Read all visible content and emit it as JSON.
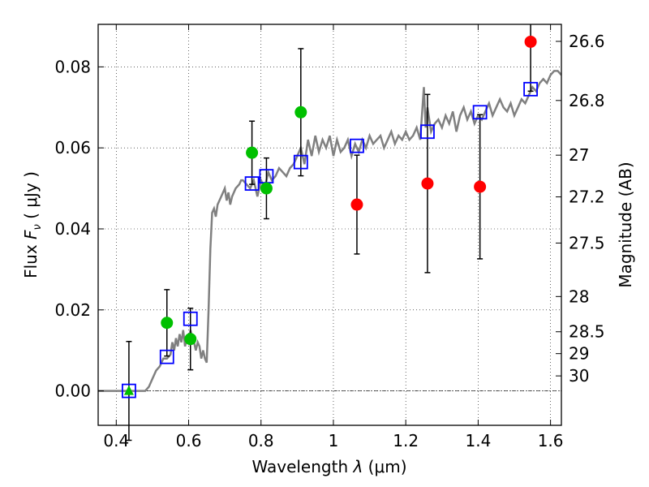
{
  "chart_data": {
    "type": "scatter",
    "title": "",
    "xlabel": "Wavelength  λ (μm)",
    "ylabel": "Flux  F_ν  ( μJy )",
    "ylabel_parts": {
      "pre": "Flux ",
      "sym": "F",
      "sub": "ν",
      "post": "  ( μJy )"
    },
    "xlabel_parts": {
      "pre": "Wavelength  ",
      "sym": "λ",
      "post": " (μm)"
    },
    "y2label": "Magnitude (AB)",
    "xlim": [
      0.35,
      1.63
    ],
    "ylim": [
      -0.0085,
      0.0905
    ],
    "grid": true,
    "x_ticks": [
      0.4,
      0.6,
      0.8,
      1.0,
      1.2,
      1.4,
      1.6
    ],
    "x_tick_labels": [
      "0.4",
      "0.6",
      "0.8",
      "1",
      "1.2",
      "1.4",
      "1.6"
    ],
    "y_ticks": [
      0.0,
      0.02,
      0.04,
      0.06,
      0.08
    ],
    "y_tick_labels": [
      "0.00",
      "0.02",
      "0.04",
      "0.06",
      "0.08"
    ],
    "y2_ticks": [
      {
        "flux": 0.0863,
        "label": "26.6"
      },
      {
        "flux": 0.0717,
        "label": "26.8"
      },
      {
        "flux": 0.0582,
        "label": "27"
      },
      {
        "flux": 0.0479,
        "label": "27.2"
      },
      {
        "flux": 0.0365,
        "label": "27.5"
      },
      {
        "flux": 0.0233,
        "label": "28"
      },
      {
        "flux": 0.0146,
        "label": "28.5"
      },
      {
        "flux": 0.0092,
        "label": "29"
      },
      {
        "flux": 0.0037,
        "label": "30"
      }
    ],
    "zero_line": 0.0,
    "model_spectrum": {
      "name": "model SED",
      "color": "#808080",
      "x": [
        0.35,
        0.4,
        0.45,
        0.48,
        0.49,
        0.5,
        0.51,
        0.52,
        0.53,
        0.54,
        0.55,
        0.555,
        0.56,
        0.565,
        0.57,
        0.575,
        0.58,
        0.585,
        0.59,
        0.595,
        0.6,
        0.605,
        0.61,
        0.615,
        0.62,
        0.625,
        0.63,
        0.635,
        0.64,
        0.645,
        0.65,
        0.655,
        0.66,
        0.665,
        0.67,
        0.675,
        0.68,
        0.69,
        0.7,
        0.705,
        0.71,
        0.715,
        0.72,
        0.73,
        0.74,
        0.745,
        0.75,
        0.76,
        0.77,
        0.78,
        0.79,
        0.8,
        0.81,
        0.82,
        0.83,
        0.84,
        0.85,
        0.86,
        0.87,
        0.88,
        0.89,
        0.9,
        0.91,
        0.92,
        0.93,
        0.94,
        0.95,
        0.96,
        0.97,
        0.98,
        0.99,
        1.0,
        1.01,
        1.02,
        1.03,
        1.04,
        1.05,
        1.06,
        1.07,
        1.08,
        1.09,
        1.1,
        1.11,
        1.12,
        1.13,
        1.14,
        1.15,
        1.16,
        1.17,
        1.18,
        1.19,
        1.2,
        1.21,
        1.22,
        1.23,
        1.24,
        1.25,
        1.255,
        1.26,
        1.27,
        1.28,
        1.29,
        1.3,
        1.31,
        1.32,
        1.33,
        1.34,
        1.35,
        1.36,
        1.37,
        1.38,
        1.39,
        1.4,
        1.41,
        1.42,
        1.43,
        1.44,
        1.45,
        1.46,
        1.47,
        1.48,
        1.49,
        1.5,
        1.51,
        1.52,
        1.53,
        1.54,
        1.55,
        1.56,
        1.57,
        1.58,
        1.59,
        1.6,
        1.61,
        1.62,
        1.63
      ],
      "y": [
        0.0,
        0.0,
        0.0,
        0.0,
        0.001,
        0.003,
        0.005,
        0.006,
        0.008,
        0.008,
        0.009,
        0.012,
        0.01,
        0.013,
        0.011,
        0.014,
        0.012,
        0.015,
        0.011,
        0.013,
        0.012,
        0.015,
        0.013,
        0.012,
        0.01,
        0.012,
        0.011,
        0.008,
        0.01,
        0.008,
        0.007,
        0.02,
        0.035,
        0.044,
        0.045,
        0.043,
        0.046,
        0.048,
        0.05,
        0.047,
        0.049,
        0.046,
        0.048,
        0.05,
        0.051,
        0.052,
        0.052,
        0.051,
        0.05,
        0.052,
        0.048,
        0.052,
        0.05,
        0.054,
        0.052,
        0.053,
        0.055,
        0.054,
        0.053,
        0.055,
        0.056,
        0.058,
        0.06,
        0.056,
        0.062,
        0.058,
        0.063,
        0.059,
        0.062,
        0.06,
        0.063,
        0.058,
        0.062,
        0.059,
        0.06,
        0.062,
        0.058,
        0.061,
        0.059,
        0.062,
        0.06,
        0.063,
        0.061,
        0.062,
        0.063,
        0.06,
        0.062,
        0.064,
        0.061,
        0.063,
        0.062,
        0.064,
        0.062,
        0.063,
        0.065,
        0.062,
        0.075,
        0.065,
        0.07,
        0.064,
        0.066,
        0.067,
        0.065,
        0.068,
        0.066,
        0.069,
        0.064,
        0.068,
        0.07,
        0.067,
        0.069,
        0.066,
        0.068,
        0.067,
        0.069,
        0.071,
        0.068,
        0.07,
        0.072,
        0.07,
        0.069,
        0.071,
        0.068,
        0.07,
        0.072,
        0.071,
        0.073,
        0.075,
        0.074,
        0.076,
        0.077,
        0.076,
        0.078,
        0.079,
        0.079,
        0.078
      ]
    },
    "series": [
      {
        "name": "green detections",
        "marker": "circle",
        "color": "#00c000",
        "points": [
          {
            "x": 0.54,
            "y": 0.0168,
            "err": 0.0082
          },
          {
            "x": 0.605,
            "y": 0.0128,
            "err": 0.0076
          },
          {
            "x": 0.775,
            "y": 0.0588,
            "err": 0.0078
          },
          {
            "x": 0.815,
            "y": 0.05,
            "err": 0.0075
          },
          {
            "x": 0.91,
            "y": 0.0688,
            "err": 0.0157
          }
        ]
      },
      {
        "name": "green upper limit",
        "marker": "triangle",
        "color": "#00c000",
        "points": [
          {
            "x": 0.435,
            "y": 0.0,
            "err": 0.0122
          }
        ]
      },
      {
        "name": "red detections",
        "marker": "circle",
        "color": "#ff0000",
        "points": [
          {
            "x": 1.065,
            "y": 0.046,
            "err": 0.0122
          },
          {
            "x": 1.26,
            "y": 0.0512,
            "err": 0.022
          },
          {
            "x": 1.405,
            "y": 0.0504,
            "err": 0.0178
          },
          {
            "x": 1.545,
            "y": 0.0862,
            "err": 0.0122
          }
        ]
      },
      {
        "name": "model photometry",
        "marker": "square",
        "color": "#0000ff",
        "points": [
          {
            "x": 0.435,
            "y": 0.0
          },
          {
            "x": 0.54,
            "y": 0.0084
          },
          {
            "x": 0.605,
            "y": 0.0178
          },
          {
            "x": 0.775,
            "y": 0.0512
          },
          {
            "x": 0.815,
            "y": 0.053
          },
          {
            "x": 0.91,
            "y": 0.0565
          },
          {
            "x": 1.065,
            "y": 0.0605
          },
          {
            "x": 1.26,
            "y": 0.064
          },
          {
            "x": 1.405,
            "y": 0.0688
          },
          {
            "x": 1.545,
            "y": 0.0745
          }
        ]
      }
    ]
  }
}
